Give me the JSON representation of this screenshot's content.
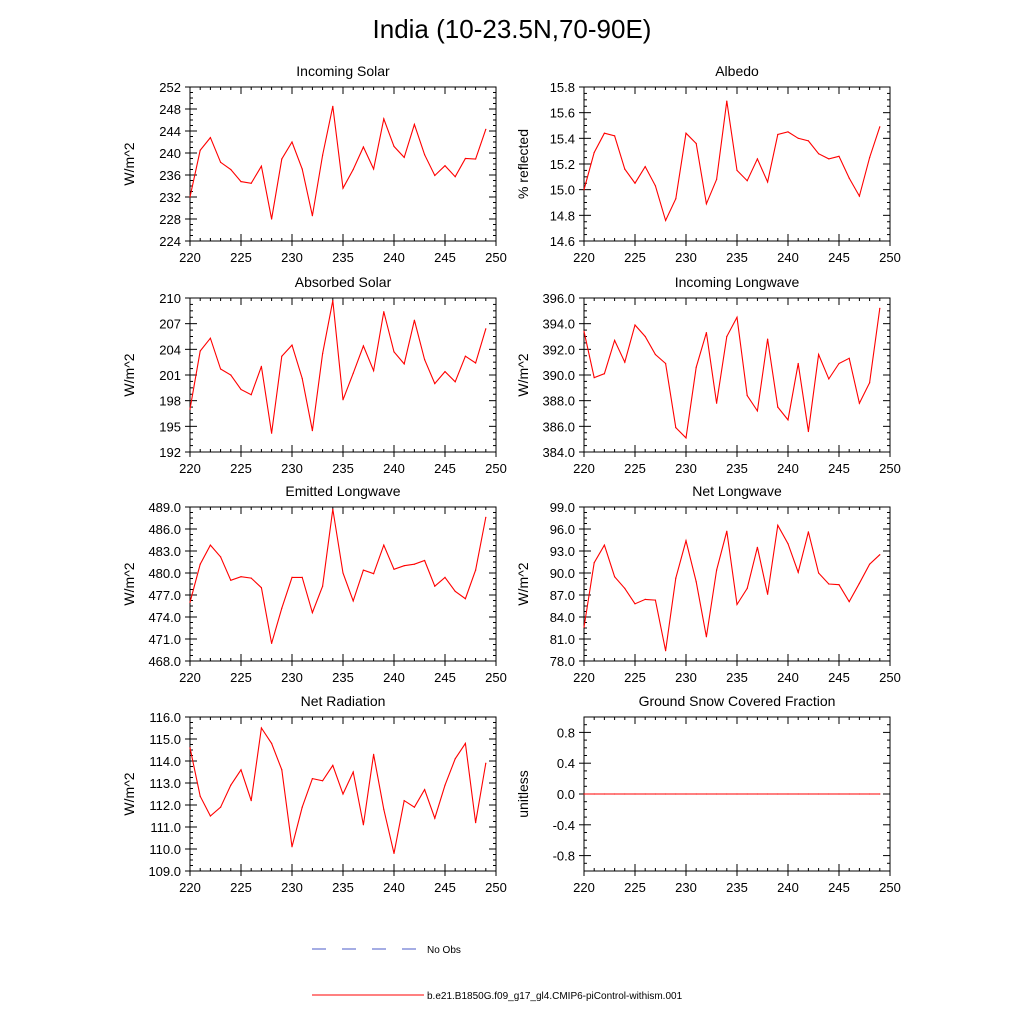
{
  "figure": {
    "title": "India (10-23.5N,70-90E)"
  },
  "colors": {
    "model": "#ff0000",
    "obs": "#4b5bc8",
    "axis": "#000000"
  },
  "legend": {
    "obs_label": "No Obs",
    "model_label": "b.e21.B1850G.f09_g17_gl4.CMIP6-piControl-withism.001"
  },
  "chart_data": [
    {
      "type": "line",
      "title": "Incoming Solar",
      "xlabel": "",
      "ylabel": "W/m^2",
      "xlim": [
        220,
        250
      ],
      "ylim": [
        224,
        252
      ],
      "xticks": [
        220,
        225,
        230,
        235,
        240,
        245,
        250
      ],
      "yticks": [
        224,
        228,
        232,
        236,
        240,
        244,
        248,
        252
      ],
      "ytick_labels": [
        "224",
        "228",
        "232",
        "236",
        "240",
        "244",
        "248",
        "252"
      ],
      "series": [
        {
          "name": "b.e21.B1850G.f09_g17_gl4.CMIP6-piControl-withism.001",
          "x": [
            220,
            221,
            222,
            223,
            224,
            225,
            226,
            227,
            228,
            229,
            230,
            231,
            232,
            233,
            234,
            235,
            236,
            237,
            238,
            239,
            240,
            241,
            242,
            243,
            244,
            245,
            246,
            247,
            248,
            249
          ],
          "values": [
            232.0,
            240.5,
            242.8,
            238.3,
            237.0,
            234.8,
            234.5,
            237.6,
            228.0,
            238.9,
            242.0,
            237.1,
            228.6,
            239.6,
            248.5,
            233.6,
            237.0,
            241.1,
            237.1,
            246.2,
            241.2,
            239.2,
            245.2,
            239.7,
            235.9,
            237.7,
            235.7,
            239.0,
            238.9,
            244.3
          ]
        }
      ]
    },
    {
      "type": "line",
      "title": "Albedo",
      "xlabel": "",
      "ylabel": "% reflected",
      "xlim": [
        220,
        250
      ],
      "ylim": [
        14.6,
        15.8
      ],
      "xticks": [
        220,
        225,
        230,
        235,
        240,
        245,
        250
      ],
      "yticks": [
        14.6,
        14.8,
        15.0,
        15.2,
        15.4,
        15.6,
        15.8
      ],
      "ytick_labels": [
        "14.6",
        "14.8",
        "15.0",
        "15.2",
        "15.4",
        "15.6",
        "15.8"
      ],
      "series": [
        {
          "name": "b.e21.B1850G.f09_g17_gl4.CMIP6-piControl-withism.001",
          "x": [
            220,
            221,
            222,
            223,
            224,
            225,
            226,
            227,
            228,
            229,
            230,
            231,
            232,
            233,
            234,
            235,
            236,
            237,
            238,
            239,
            240,
            241,
            242,
            243,
            244,
            245,
            246,
            247,
            248,
            249
          ],
          "values": [
            15.0,
            15.29,
            15.44,
            15.42,
            15.16,
            15.05,
            15.18,
            15.03,
            14.76,
            14.93,
            15.44,
            15.36,
            14.89,
            15.08,
            15.69,
            15.15,
            15.07,
            15.24,
            15.06,
            15.43,
            15.45,
            15.4,
            15.38,
            15.28,
            15.24,
            15.26,
            15.09,
            14.95,
            15.25,
            15.49
          ]
        }
      ]
    },
    {
      "type": "line",
      "title": "Absorbed Solar",
      "xlabel": "",
      "ylabel": "W/m^2",
      "xlim": [
        220,
        250
      ],
      "ylim": [
        192,
        210
      ],
      "xticks": [
        220,
        225,
        230,
        235,
        240,
        245,
        250
      ],
      "yticks": [
        192,
        195,
        198,
        201,
        204,
        207,
        210
      ],
      "ytick_labels": [
        "192",
        "195",
        "198",
        "201",
        "204",
        "207",
        "210"
      ],
      "series": [
        {
          "name": "b.e21.B1850G.f09_g17_gl4.CMIP6-piControl-withism.001",
          "x": [
            220,
            221,
            222,
            223,
            224,
            225,
            226,
            227,
            228,
            229,
            230,
            231,
            232,
            233,
            234,
            235,
            236,
            237,
            238,
            239,
            240,
            241,
            242,
            243,
            244,
            245,
            246,
            247,
            248,
            249
          ],
          "values": [
            197.0,
            203.8,
            205.3,
            201.7,
            201.0,
            199.3,
            198.7,
            202.0,
            194.2,
            203.2,
            204.5,
            200.6,
            194.5,
            203.5,
            209.7,
            198.1,
            201.2,
            204.4,
            201.5,
            208.4,
            203.7,
            202.3,
            207.4,
            202.8,
            200.0,
            201.4,
            200.2,
            203.2,
            202.4,
            206.4
          ]
        }
      ]
    },
    {
      "type": "line",
      "title": "Incoming Longwave",
      "xlabel": "",
      "ylabel": "W/m^2",
      "xlim": [
        220,
        250
      ],
      "ylim": [
        384,
        396
      ],
      "xticks": [
        220,
        225,
        230,
        235,
        240,
        245,
        250
      ],
      "yticks": [
        384,
        386,
        388,
        390,
        392,
        394,
        396
      ],
      "ytick_labels": [
        "384.0",
        "386.0",
        "388.0",
        "390.0",
        "392.0",
        "394.0",
        "396.0"
      ],
      "series": [
        {
          "name": "b.e21.B1850G.f09_g17_gl4.CMIP6-piControl-withism.001",
          "x": [
            220,
            221,
            222,
            223,
            224,
            225,
            226,
            227,
            228,
            229,
            230,
            231,
            232,
            233,
            234,
            235,
            236,
            237,
            238,
            239,
            240,
            241,
            242,
            243,
            244,
            245,
            246,
            247,
            248,
            249
          ],
          "values": [
            393.4,
            389.8,
            390.1,
            392.7,
            391.0,
            393.9,
            393.0,
            391.6,
            390.9,
            385.9,
            385.1,
            390.6,
            393.3,
            387.8,
            393.0,
            394.5,
            388.4,
            387.2,
            392.8,
            387.5,
            386.5,
            390.9,
            385.6,
            391.6,
            389.7,
            390.9,
            391.3,
            387.8,
            389.4,
            395.2
          ]
        }
      ]
    },
    {
      "type": "line",
      "title": "Emitted Longwave",
      "xlabel": "",
      "ylabel": "W/m^2",
      "xlim": [
        220,
        250
      ],
      "ylim": [
        468,
        489
      ],
      "xticks": [
        220,
        225,
        230,
        235,
        240,
        245,
        250
      ],
      "yticks": [
        468,
        471,
        474,
        477,
        480,
        483,
        486,
        489
      ],
      "ytick_labels": [
        "468.0",
        "471.0",
        "474.0",
        "477.0",
        "480.0",
        "483.0",
        "486.0",
        "489.0"
      ],
      "series": [
        {
          "name": "b.e21.B1850G.f09_g17_gl4.CMIP6-piControl-withism.001",
          "x": [
            220,
            221,
            222,
            223,
            224,
            225,
            226,
            227,
            228,
            229,
            230,
            231,
            232,
            233,
            234,
            235,
            236,
            237,
            238,
            239,
            240,
            241,
            242,
            243,
            244,
            245,
            246,
            247,
            248,
            249
          ],
          "values": [
            476.0,
            481.2,
            483.8,
            482.2,
            479.0,
            479.5,
            479.3,
            478.0,
            470.4,
            475.2,
            479.4,
            479.4,
            474.6,
            478.2,
            488.7,
            480.0,
            476.2,
            480.4,
            479.9,
            483.8,
            480.5,
            481.0,
            481.2,
            481.7,
            478.2,
            479.4,
            477.5,
            476.5,
            480.4,
            487.6
          ]
        }
      ]
    },
    {
      "type": "line",
      "title": "Net Longwave",
      "xlabel": "",
      "ylabel": "W/m^2",
      "xlim": [
        220,
        250
      ],
      "ylim": [
        78,
        99
      ],
      "xticks": [
        220,
        225,
        230,
        235,
        240,
        245,
        250
      ],
      "yticks": [
        78,
        81,
        84,
        87,
        90,
        93,
        96,
        99
      ],
      "ytick_labels": [
        "78.0",
        "81.0",
        "84.0",
        "87.0",
        "90.0",
        "93.0",
        "96.0",
        "99.0"
      ],
      "series": [
        {
          "name": "b.e21.B1850G.f09_g17_gl4.CMIP6-piControl-withism.001",
          "x": [
            220,
            221,
            222,
            223,
            224,
            225,
            226,
            227,
            228,
            229,
            230,
            231,
            232,
            233,
            234,
            235,
            236,
            237,
            238,
            239,
            240,
            241,
            242,
            243,
            244,
            245,
            246,
            247,
            248,
            249
          ],
          "values": [
            82.6,
            91.4,
            93.8,
            89.5,
            87.9,
            85.8,
            86.4,
            86.3,
            79.4,
            89.3,
            94.4,
            88.8,
            81.3,
            90.4,
            95.7,
            85.7,
            87.9,
            93.5,
            87.1,
            96.5,
            94.0,
            90.1,
            95.6,
            90.0,
            88.5,
            88.4,
            86.1,
            88.6,
            91.2,
            92.5
          ]
        }
      ]
    },
    {
      "type": "line",
      "title": "Net Radiation",
      "xlabel": "",
      "ylabel": "W/m^2",
      "xlim": [
        220,
        250
      ],
      "ylim": [
        109,
        116
      ],
      "xticks": [
        220,
        225,
        230,
        235,
        240,
        245,
        250
      ],
      "yticks": [
        109,
        110,
        111,
        112,
        113,
        114,
        115,
        116
      ],
      "ytick_labels": [
        "109.0",
        "110.0",
        "111.0",
        "112.0",
        "113.0",
        "114.0",
        "115.0",
        "116.0"
      ],
      "series": [
        {
          "name": "b.e21.B1850G.f09_g17_gl4.CMIP6-piControl-withism.001",
          "x": [
            220,
            221,
            222,
            223,
            224,
            225,
            226,
            227,
            228,
            229,
            230,
            231,
            232,
            233,
            234,
            235,
            236,
            237,
            238,
            239,
            240,
            241,
            242,
            243,
            244,
            245,
            246,
            247,
            248,
            249
          ],
          "values": [
            114.6,
            112.4,
            111.5,
            111.9,
            112.9,
            113.6,
            112.2,
            115.5,
            114.8,
            113.6,
            110.1,
            111.9,
            113.2,
            113.1,
            113.8,
            112.5,
            113.5,
            111.1,
            114.3,
            111.8,
            109.8,
            112.2,
            111.9,
            112.7,
            111.4,
            112.9,
            114.1,
            114.8,
            111.2,
            113.9
          ]
        }
      ]
    },
    {
      "type": "line",
      "title": "Ground Snow Covered Fraction",
      "xlabel": "",
      "ylabel": "unitless",
      "xlim": [
        220,
        250
      ],
      "ylim": [
        -1.0,
        1.0
      ],
      "xticks": [
        220,
        225,
        230,
        235,
        240,
        245,
        250
      ],
      "yticks": [
        -0.8,
        -0.4,
        0.0,
        0.4,
        0.8
      ],
      "ytick_labels": [
        "-0.8",
        "-0.4",
        "0.0",
        "0.4",
        "0.8"
      ],
      "series": [
        {
          "name": "b.e21.B1850G.f09_g17_gl4.CMIP6-piControl-withism.001",
          "x": [
            220,
            221,
            222,
            223,
            224,
            225,
            226,
            227,
            228,
            229,
            230,
            231,
            232,
            233,
            234,
            235,
            236,
            237,
            238,
            239,
            240,
            241,
            242,
            243,
            244,
            245,
            246,
            247,
            248,
            249
          ],
          "values": [
            0,
            0,
            0,
            0,
            0,
            0,
            0,
            0,
            0,
            0,
            0,
            0,
            0,
            0,
            0,
            0,
            0,
            0,
            0,
            0,
            0,
            0,
            0,
            0,
            0,
            0,
            0,
            0,
            0,
            0
          ]
        }
      ]
    }
  ]
}
